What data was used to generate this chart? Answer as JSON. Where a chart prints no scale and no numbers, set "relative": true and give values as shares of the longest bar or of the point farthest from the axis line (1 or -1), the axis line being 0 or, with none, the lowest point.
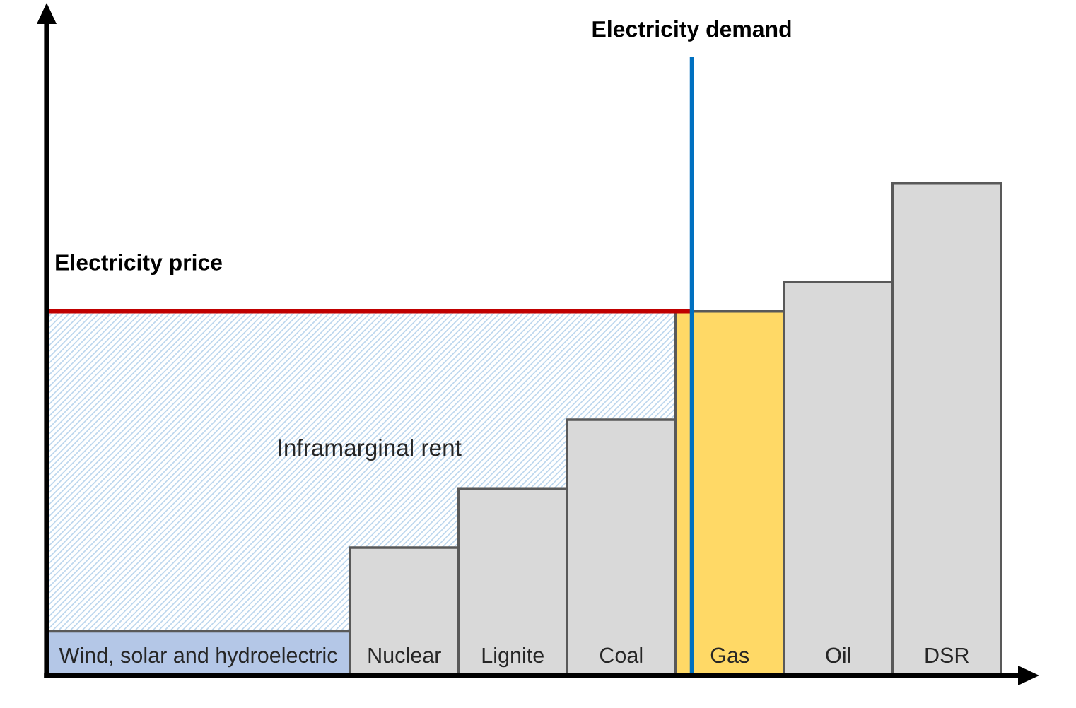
{
  "chart_data": {
    "type": "bar",
    "relative": true,
    "tick_labels": "x",
    "categories": [
      "Wind, solar and hydroelectric",
      "Nuclear",
      "Lignite",
      "Coal",
      "Gas",
      "Oil",
      "DSR"
    ],
    "values": [
      0.09,
      0.26,
      0.38,
      0.52,
      0.74,
      0.8,
      1
    ],
    "colors": [
      "#b4c7e7",
      "#d9d9d9",
      "#d9d9d9",
      "#d9d9d9",
      "#ffd966",
      "#d9d9d9",
      "#d9d9d9"
    ],
    "ref_lines": [
      {
        "axis": "y",
        "value": 0.74,
        "label": "Electricity price",
        "color": "#c00000"
      },
      {
        "axis": "x",
        "value": "Gas",
        "label": "Electricity demand",
        "color": "#0070c0"
      }
    ],
    "bands": [
      {
        "axis": "y",
        "from": 0,
        "to": 0.74,
        "label": "Inframarginal rent",
        "color": "#bdd7ee"
      }
    ]
  }
}
